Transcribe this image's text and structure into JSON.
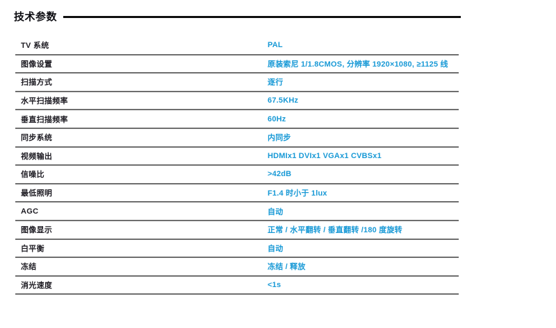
{
  "page": {
    "title": "技术参数"
  },
  "colors": {
    "value_text": "#1899d6",
    "label_text": "#1d1b22",
    "row_border": "#6e6e6e",
    "title_rule": "#101010"
  },
  "table": {
    "rows": [
      {
        "label": "TV 系统",
        "value": "PAL"
      },
      {
        "label": "图像设置",
        "value": "原装索尼 1/1.8CMOS, 分辨率 1920×1080, ≥1125 线"
      },
      {
        "label": "扫描方式",
        "value": "逐行"
      },
      {
        "label": "水平扫描频率",
        "value": "67.5KHz"
      },
      {
        "label": "垂直扫描频率",
        "value": "60Hz"
      },
      {
        "label": "同步系统",
        "value": "内同步"
      },
      {
        "label": "视频输出",
        "value": "HDMIx1 DVIx1 VGAx1 CVBSx1"
      },
      {
        "label": "信噪比",
        "value": ">42dB"
      },
      {
        "label": "最低照明",
        "value": "F1.4 时小于 1lux"
      },
      {
        "label": "AGC",
        "value": "自动"
      },
      {
        "label": "图像显示",
        "value": "正常 / 水平翻转 / 垂直翻转 /180 度旋转"
      },
      {
        "label": "白平衡",
        "value": "自动"
      },
      {
        "label": "冻结",
        "value": "冻结 / 释放"
      },
      {
        "label": "消光速度",
        "value": "<1s"
      }
    ]
  }
}
